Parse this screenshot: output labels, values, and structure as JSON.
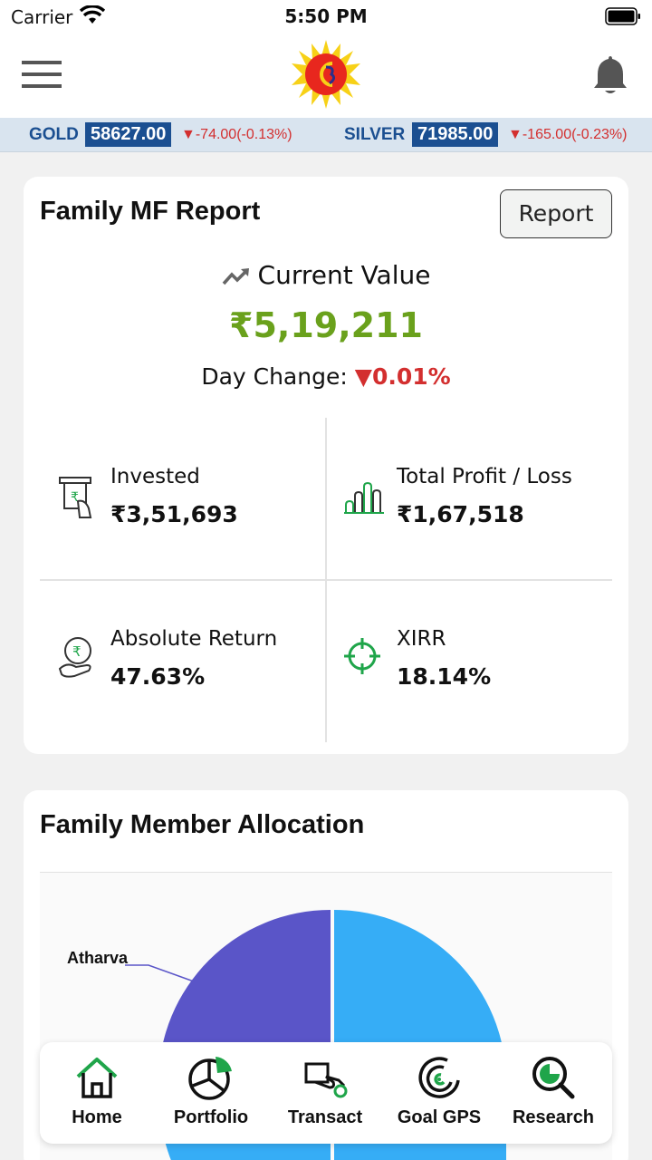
{
  "status_bar": {
    "carrier": "Carrier",
    "time": "5:50 PM"
  },
  "ticker": {
    "gold": {
      "name": "GOLD",
      "price": "58627.00",
      "change": "▼-74.00(-0.13%)"
    },
    "silver": {
      "name": "SILVER",
      "price": "71985.00",
      "change": "▼-165.00(-0.23%)"
    }
  },
  "report_card": {
    "title": "Family MF Report",
    "report_button": "Report",
    "current_value_label": "Current Value",
    "current_value": "₹5,19,211",
    "day_change_label": "Day Change:",
    "day_change_value": "▼0.01%",
    "metrics": {
      "invested": {
        "label": "Invested",
        "value": "₹3,51,693"
      },
      "profit": {
        "label": "Total Profit / Loss",
        "value": "₹1,67,518"
      },
      "absolute": {
        "label": "Absolute Return",
        "value": "47.63%"
      },
      "xirr": {
        "label": "XIRR",
        "value": "18.14%"
      }
    }
  },
  "family_card": {
    "title": "Family Member Allocation",
    "pie_label": "Atharva"
  },
  "bottom_nav": {
    "home": "Home",
    "portfolio": "Portfolio",
    "transact": "Transact",
    "goal_gps": "Goal GPS",
    "research": "Research"
  },
  "colors": {
    "accent_green": "#6aa11c",
    "down_red": "#d32f2f",
    "ticker_blue": "#1b4f91",
    "pie_purple": "#5a55c8",
    "pie_blue": "#36adf6"
  }
}
